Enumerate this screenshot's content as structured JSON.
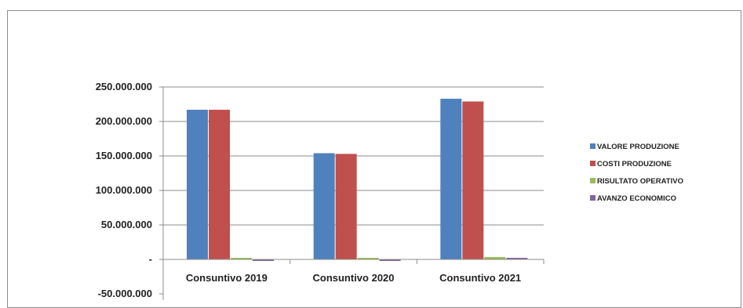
{
  "chart_data": {
    "type": "bar",
    "categories": [
      "Consuntivo 2019",
      "Consuntivo 2020",
      "Consuntivo 2021"
    ],
    "series": [
      {
        "name": "VALORE PRODUZIONE",
        "color": "#4f81bd",
        "values": [
          217000000,
          154000000,
          233000000
        ]
      },
      {
        "name": "COSTI PRODUZIONE",
        "color": "#c0504d",
        "values": [
          217000000,
          153000000,
          229000000
        ]
      },
      {
        "name": "RISULTATO OPERATIVO",
        "color": "#9bbb59",
        "values": [
          0,
          700000,
          3500000
        ]
      },
      {
        "name": "AVANZO ECONOMICO",
        "color": "#8064a2",
        "values": [
          -1500000,
          -300000,
          2000000
        ]
      }
    ],
    "y_ticks": [
      250000000,
      200000000,
      150000000,
      100000000,
      50000000,
      0,
      -50000000
    ],
    "y_tick_labels": [
      "250.000.000",
      "200.000.000",
      "150.000.000",
      "100.000.000",
      "50.000.000",
      "-",
      "-50.000.000"
    ],
    "ylim": [
      -50000000,
      250000000
    ],
    "grid": true,
    "legend_position": "right"
  }
}
